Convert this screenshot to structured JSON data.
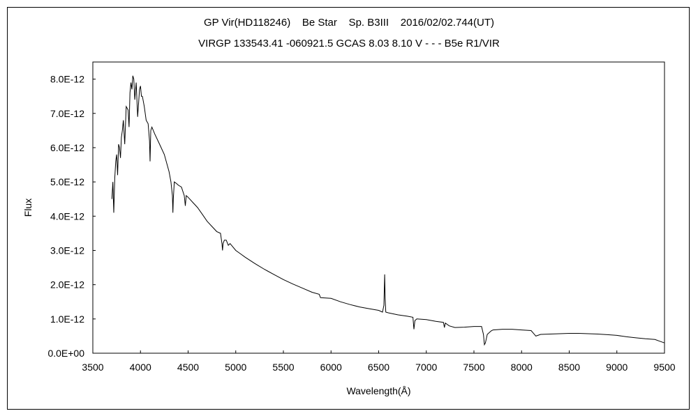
{
  "chart_data": {
    "type": "line",
    "title": "GP Vir(HD118246)    Be Star    Sp. B3III    2016/02/02.744(UT)",
    "subtitle": "VIRGP 133543.41 -060921.5 GCAS 8.03 8.10 V - - - B5e R1/VIR",
    "xlabel": "Wavelength(Å)",
    "ylabel": "Flux",
    "xlim": [
      3500,
      9500
    ],
    "ylim": [
      0,
      8.5e-12
    ],
    "xticks": [
      3500,
      4000,
      4500,
      5000,
      5500,
      6000,
      6500,
      7000,
      7500,
      8000,
      8500,
      9000,
      9500
    ],
    "xtick_labels": [
      "3500",
      "4000",
      "4500",
      "5000",
      "5500",
      "6000",
      "6500",
      "7000",
      "7500",
      "8000",
      "8500",
      "9000",
      "9500"
    ],
    "yticks": [
      0,
      1e-12,
      2e-12,
      3e-12,
      4e-12,
      5e-12,
      6e-12,
      7e-12,
      8e-12
    ],
    "ytick_labels": [
      "0.0E+00",
      "1.0E-12",
      "2.0E-12",
      "3.0E-12",
      "4.0E-12",
      "5.0E-12",
      "6.0E-12",
      "7.0E-12",
      "8.0E-12"
    ],
    "grid": false,
    "legend": "none",
    "series": [
      {
        "x": [
          3700,
          3710,
          3720,
          3730,
          3740,
          3750,
          3760,
          3770,
          3780,
          3790,
          3800,
          3810,
          3820,
          3835,
          3850,
          3870,
          3880,
          3890,
          3900,
          3910,
          3920,
          3930,
          3940,
          3955,
          3970,
          3990,
          4000,
          4010,
          4020,
          4040,
          4060,
          4080,
          4095,
          4101,
          4108,
          4120,
          4150,
          4200,
          4250,
          4300,
          4320,
          4335,
          4340,
          4345,
          4355,
          4380,
          4400,
          4430,
          4460,
          4471,
          4480,
          4500,
          4550,
          4600,
          4650,
          4700,
          4750,
          4800,
          4840,
          4855,
          4861,
          4867,
          4880,
          4900,
          4922,
          4940,
          5000,
          5050,
          5100,
          5200,
          5300,
          5400,
          5500,
          5600,
          5700,
          5800,
          5876,
          5890,
          6000,
          6100,
          6200,
          6300,
          6400,
          6500,
          6540,
          6555,
          6563,
          6568,
          6575,
          6600,
          6700,
          6800,
          6860,
          6870,
          6880,
          6900,
          7000,
          7100,
          7180,
          7190,
          7200,
          7240,
          7300,
          7400,
          7500,
          7580,
          7600,
          7610,
          7620,
          7640,
          7680,
          7700,
          7800,
          7900,
          8000,
          8100,
          8150,
          8200,
          8300,
          8400,
          8500,
          8600,
          8700,
          8800,
          8900,
          9000,
          9100,
          9200,
          9300,
          9400,
          9450,
          9500
        ],
        "y": [
          4.5e-12,
          5e-12,
          4.1e-12,
          5.1e-12,
          5.6e-12,
          5.8e-12,
          5.2e-12,
          6.1e-12,
          6e-12,
          5.7e-12,
          6.3e-12,
          6.5e-12,
          6.8e-12,
          6.1e-12,
          7.2e-12,
          7.1e-12,
          6.6e-12,
          7.6e-12,
          7.9e-12,
          7.7e-12,
          8.1e-12,
          8e-12,
          7.4e-12,
          7.9e-12,
          6.9e-12,
          7.7e-12,
          7.8e-12,
          7.5e-12,
          7.5e-12,
          7.2e-12,
          6.8e-12,
          6.7e-12,
          6.2e-12,
          5.6e-12,
          6.5e-12,
          6.6e-12,
          6.4e-12,
          6.1e-12,
          5.8e-12,
          5.3e-12,
          5e-12,
          4.6e-12,
          4.1e-12,
          4.5e-12,
          5e-12,
          4.95e-12,
          4.9e-12,
          4.85e-12,
          4.6e-12,
          4.3e-12,
          4.6e-12,
          4.55e-12,
          4.4e-12,
          4.25e-12,
          4.05e-12,
          3.85e-12,
          3.7e-12,
          3.55e-12,
          3.5e-12,
          3.2e-12,
          3e-12,
          3.2e-12,
          3.3e-12,
          3.3e-12,
          3.15e-12,
          3.2e-12,
          3e-12,
          2.9e-12,
          2.8e-12,
          2.62e-12,
          2.45e-12,
          2.3e-12,
          2.15e-12,
          2.02e-12,
          1.9e-12,
          1.78e-12,
          1.72e-12,
          1.62e-12,
          1.6e-12,
          1.5e-12,
          1.42e-12,
          1.35e-12,
          1.3e-12,
          1.25e-12,
          1.2e-12,
          1.4e-12,
          2.3e-12,
          1.6e-12,
          1.2e-12,
          1.18e-12,
          1.12e-12,
          1.08e-12,
          1.05e-12,
          7e-13,
          9.5e-13,
          1e-12,
          9.8e-13,
          9.3e-13,
          9e-13,
          7.5e-13,
          8.8e-13,
          8e-13,
          7.5e-13,
          7.6e-13,
          7.8e-13,
          7.8e-13,
          5.5e-13,
          2.5e-13,
          3e-13,
          5.5e-13,
          6.5e-13,
          6.8e-13,
          7e-13,
          7e-13,
          6.8e-13,
          6.6e-13,
          5e-13,
          5.5e-13,
          5.6e-13,
          5.7e-13,
          5.8e-13,
          5.8e-13,
          5.7e-13,
          5.6e-13,
          5.4e-13,
          5.2e-13,
          4.8e-13,
          4.5e-13,
          4.2e-13,
          4e-13,
          3.5e-13,
          3e-13
        ]
      }
    ]
  }
}
